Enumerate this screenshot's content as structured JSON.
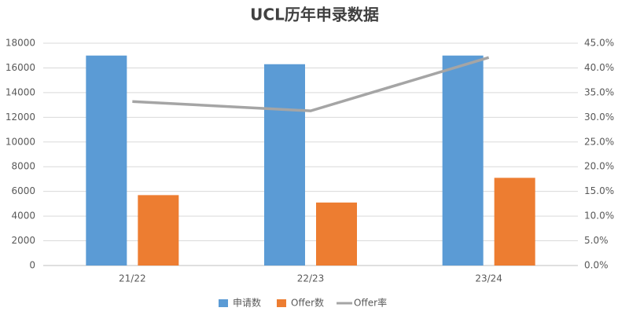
{
  "chart_data": {
    "type": "bar",
    "title": "UCL历年申录数据",
    "categories": [
      "21/22",
      "22/23",
      "23/24"
    ],
    "series": [
      {
        "name": "申请数",
        "color": "#5b9bd5",
        "type": "bar",
        "values": [
          17000,
          16300,
          17000
        ]
      },
      {
        "name": "Offer数",
        "color": "#ed7d31",
        "type": "bar",
        "values": [
          5700,
          5100,
          7100
        ]
      },
      {
        "name": "Offer率",
        "color": "#a5a5a5",
        "type": "line",
        "axis": "y2",
        "values": [
          33.2,
          31.3,
          42.1
        ]
      }
    ],
    "ylim": [
      0,
      18000
    ],
    "yticks": [
      0,
      2000,
      4000,
      6000,
      8000,
      10000,
      12000,
      14000,
      16000,
      18000
    ],
    "y2lim": [
      0,
      45
    ],
    "y2ticks": [
      {
        "value": 0,
        "label": "0.0%"
      },
      {
        "value": 5,
        "label": "5.0%"
      },
      {
        "value": 10,
        "label": "10.0%"
      },
      {
        "value": 15,
        "label": "15.0%"
      },
      {
        "value": 20,
        "label": "20.0%"
      },
      {
        "value": 25,
        "label": "25.0%"
      },
      {
        "value": 30,
        "label": "30.0%"
      },
      {
        "value": 35,
        "label": "35.0%"
      },
      {
        "value": 40,
        "label": "40.0%"
      },
      {
        "value": 45,
        "label": "45.0%"
      }
    ],
    "grid": true,
    "legend": "bottom"
  }
}
